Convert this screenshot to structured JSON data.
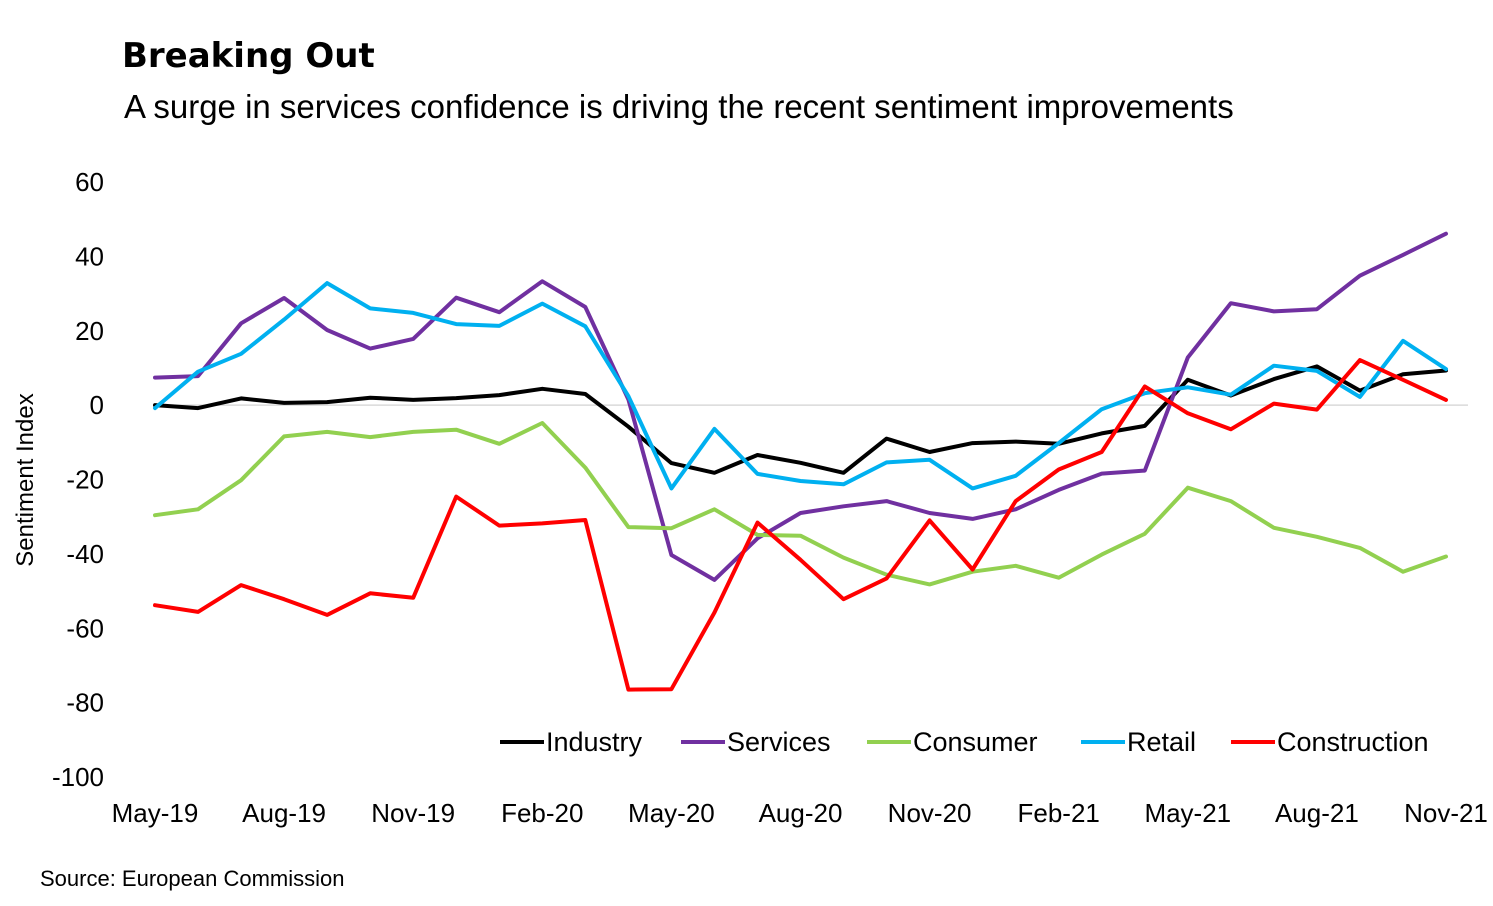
{
  "title": "Breaking Out",
  "subtitle": "A surge in services confidence is driving the recent sentiment improvements",
  "source": "Source: European Commission",
  "chart_data": {
    "type": "line",
    "ylabel": "Sentiment Index",
    "ylim": [
      -100,
      60
    ],
    "yticks": [
      60,
      40,
      20,
      0,
      -20,
      -40,
      -60,
      -80,
      -100
    ],
    "x": [
      "May-19",
      "Jun-19",
      "Jul-19",
      "Aug-19",
      "Sep-19",
      "Oct-19",
      "Nov-19",
      "Dec-19",
      "Jan-20",
      "Feb-20",
      "Mar-20",
      "Apr-20",
      "May-20",
      "Jun-20",
      "Jul-20",
      "Aug-20",
      "Sep-20",
      "Oct-20",
      "Nov-20",
      "Dec-20",
      "Jan-21",
      "Feb-21",
      "Mar-21",
      "Apr-21",
      "May-21",
      "Jun-21",
      "Jul-21",
      "Aug-21",
      "Sep-21",
      "Oct-21",
      "Nov-21"
    ],
    "xtick_labels": [
      "May-19",
      "Aug-19",
      "Nov-19",
      "Feb-20",
      "May-20",
      "Aug-20",
      "Nov-20",
      "Feb-21",
      "May-21",
      "Aug-21",
      "Nov-21"
    ],
    "xtick_step": 3,
    "legend_position": "bottom-right",
    "series": [
      {
        "name": "Industry",
        "color": "#000000",
        "values": [
          0,
          -0.8,
          1.8,
          0.6,
          0.8,
          2,
          1.4,
          1.9,
          2.7,
          4.4,
          3,
          -5.8,
          -15.6,
          -18.2,
          -13.4,
          -15.5,
          -18.2,
          -9,
          -12.6,
          -10.2,
          -9.8,
          -10.4,
          -7.6,
          -5.6,
          6.8,
          2.6,
          7,
          10.4,
          3.9,
          8.3,
          9.3
        ]
      },
      {
        "name": "Services",
        "color": "#7030A0",
        "values": [
          7.4,
          7.8,
          22,
          28.8,
          20.2,
          15.2,
          17.8,
          28.9,
          25,
          33.3,
          26.4,
          1.5,
          -40.3,
          -47,
          -35.8,
          -29,
          -27.2,
          -25.8,
          -29,
          -30.6,
          -28,
          -22.8,
          -18.4,
          -17.6,
          12.8,
          27.4,
          25.2,
          25.8,
          34.8,
          40.4,
          46.1
        ]
      },
      {
        "name": "Consumer",
        "color": "#92D050",
        "values": [
          -29.6,
          -28,
          -20.2,
          -8.4,
          -7.2,
          -8.6,
          -7.2,
          -6.6,
          -10.4,
          -4.8,
          -16.8,
          -32.8,
          -33.1,
          -28,
          -34.9,
          -35.1,
          -41,
          -45.6,
          -48.2,
          -44.8,
          -43.2,
          -46.4,
          -40.2,
          -34.6,
          -22.2,
          -25.8,
          -33,
          -35.4,
          -38.4,
          -44.8,
          -40.7
        ]
      },
      {
        "name": "Retail",
        "color": "#00B0F0",
        "values": [
          -0.8,
          9,
          13.8,
          23,
          32.8,
          26,
          24.8,
          21.8,
          21.3,
          27.3,
          21.2,
          2.4,
          -22.4,
          -6.4,
          -18.5,
          -20.4,
          -21.3,
          -15.4,
          -14.7,
          -22.4,
          -19,
          -10.2,
          -1.1,
          3.2,
          4.8,
          2.8,
          10.6,
          9.2,
          2.2,
          17.3,
          9.7
        ]
      },
      {
        "name": "Construction",
        "color": "#FF0000",
        "values": [
          -53.8,
          -55.6,
          -48.4,
          -52.2,
          -56.4,
          -50.6,
          -51.8,
          -24.6,
          -32.4,
          -31.8,
          -30.9,
          -76.5,
          -76.4,
          -55.8,
          -31.6,
          -41.6,
          -52.2,
          -46.6,
          -31,
          -44.2,
          -25.8,
          -17.3,
          -12.6,
          5,
          -2.2,
          -6.5,
          0.4,
          -1.2,
          12.1,
          6.8,
          1.4
        ]
      }
    ]
  }
}
